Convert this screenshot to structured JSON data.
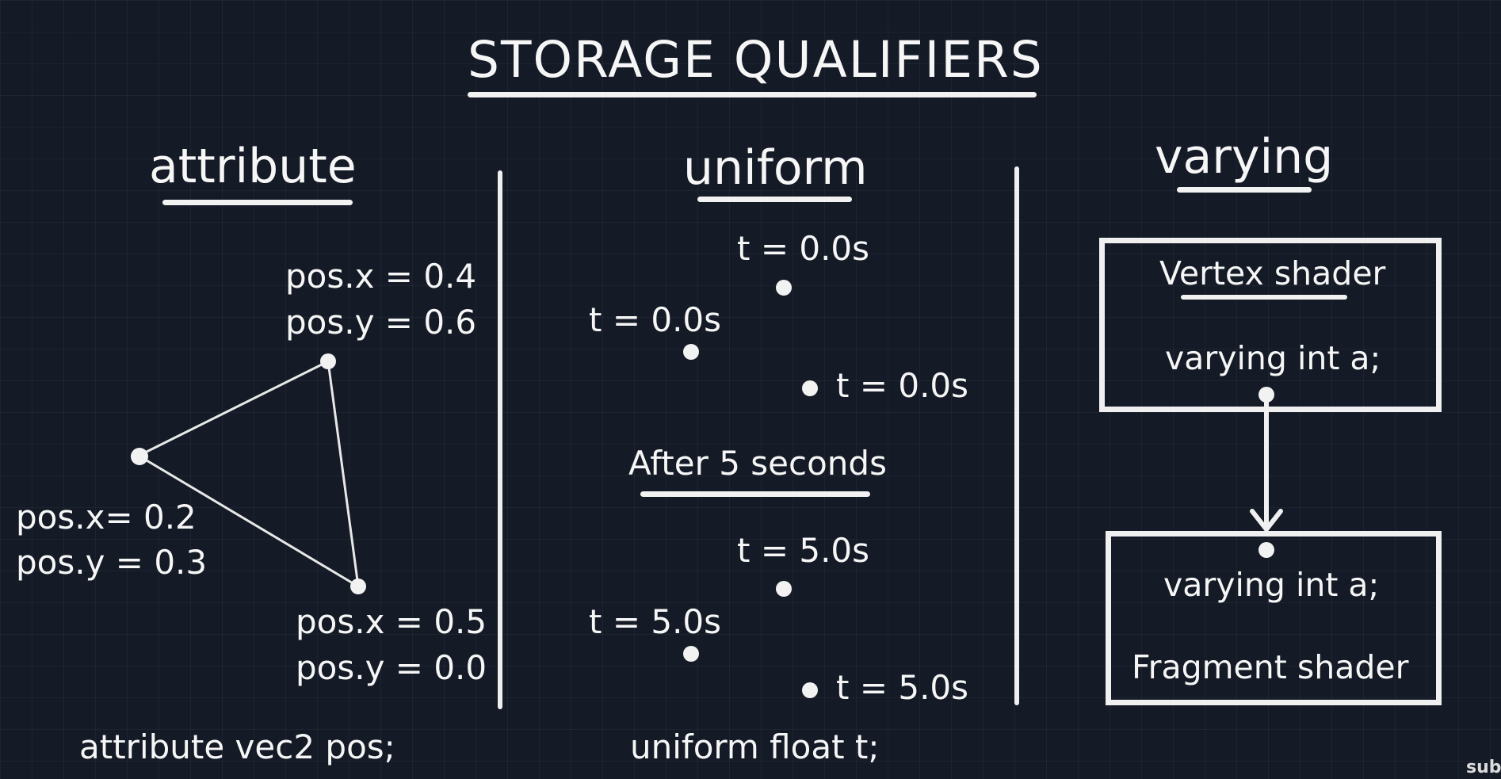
{
  "title": "STORAGE QUALIFIERS",
  "columns": {
    "attribute": {
      "heading": "attribute",
      "vertex_top": {
        "x": "pos.x = 0.4",
        "y": "pos.y = 0.6"
      },
      "vertex_left": {
        "x": "pos.x= 0.2",
        "y": "pos.y = 0.3"
      },
      "vertex_bottom": {
        "x": "pos.x = 0.5",
        "y": "pos.y = 0.0"
      },
      "declaration": "attribute vec2 pos;"
    },
    "uniform": {
      "heading": "uniform",
      "before": {
        "top": "t = 0.0s",
        "left": "t = 0.0s",
        "right": "t = 0.0s"
      },
      "separator": "After 5 seconds",
      "after": {
        "top": "t = 5.0s",
        "left": "t = 5.0s",
        "right": "t = 5.0s"
      },
      "declaration": "uniform float t;"
    },
    "varying": {
      "heading": "varying",
      "vertex_box": {
        "title": "Vertex shader",
        "declaration": "varying int a;"
      },
      "fragment_box": {
        "declaration": "varying int a;",
        "title": "Fragment shader"
      }
    }
  },
  "watermark": "sub",
  "colors": {
    "background": "#141a26",
    "ink": "#f4f4f4"
  }
}
